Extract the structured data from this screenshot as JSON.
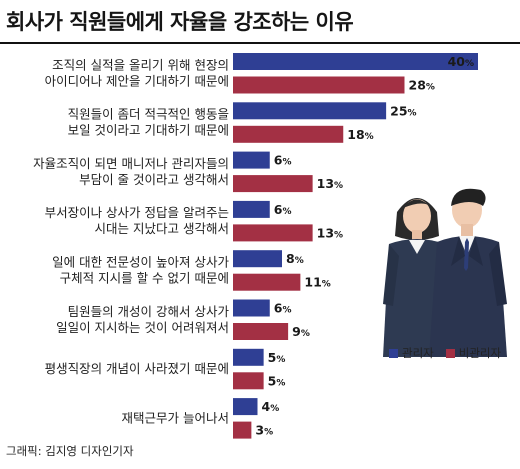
{
  "title": "회사가 직원들에게 자율을 강조하는 이유",
  "credit": "그래픽: 김지영 디자인기자",
  "colors": {
    "manager": "#2f3f94",
    "nonmanager": "#a33044"
  },
  "legend": {
    "manager_label": "관리자",
    "nonmanager_label": "비관리자"
  },
  "illustration": "two-office-workers",
  "chart_data": {
    "type": "bar",
    "orientation": "horizontal",
    "unit": "%",
    "legend_position": "right",
    "categories": [
      [
        "조직의 실적을 올리기 위해 현장의",
        "아이디어나 제안을 기대하기 때문에"
      ],
      [
        "직원들이 좀더 적극적인 행동을",
        "보일 것이라고 기대하기 때문에"
      ],
      [
        "자율조직이 되면 매니저나 관리자들의",
        "부담이 줄 것이라고 생각해서"
      ],
      [
        "부서장이나 상사가 정답을 알려주는",
        "시대는 지났다고 생각해서"
      ],
      [
        "일에 대한 전문성이 높아져 상사가",
        "구체적 지시를 할 수 없기 때문에"
      ],
      [
        "팀원들의 개성이 강해서 상사가",
        "일일이 지시하는 것이 어려워져서"
      ],
      [
        "평생직장의 개념이 사라졌기 때문에"
      ],
      [
        "재택근무가 늘어나서"
      ]
    ],
    "series": [
      {
        "name": "관리자",
        "values": [
          40,
          25,
          6,
          6,
          8,
          6,
          5,
          4
        ]
      },
      {
        "name": "비관리자",
        "values": [
          28,
          18,
          13,
          13,
          11,
          9,
          5,
          3
        ]
      }
    ]
  }
}
